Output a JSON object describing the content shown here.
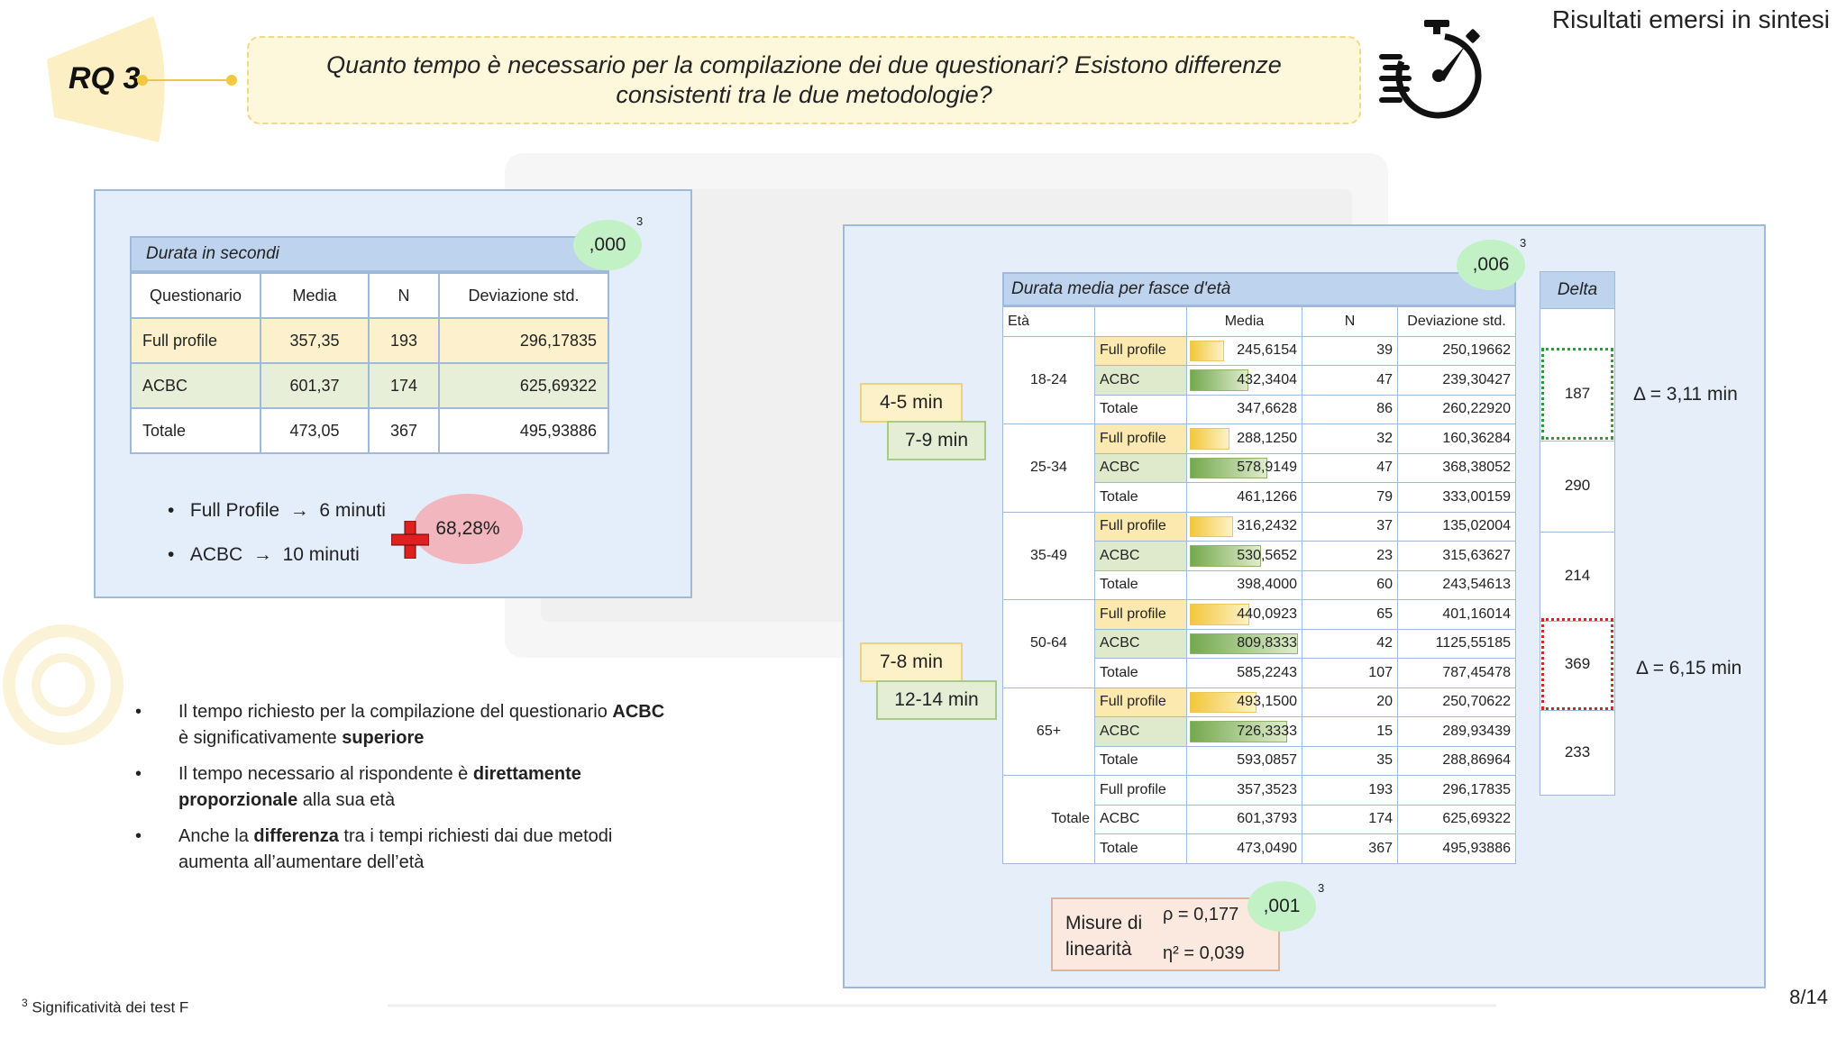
{
  "header": {
    "rq_label": "RQ 3",
    "question": "Quanto tempo è necessario per la compilazione dei due questionari? Esistono differenze consistenti tra le due metodologie?",
    "slide_title": "Risultati emersi in sintesi",
    "icon": "stopwatch-icon"
  },
  "table1": {
    "title": "Durata in secondi",
    "significance": ",000",
    "sup": "3",
    "columns": [
      "Questionario",
      "Media",
      "N",
      "Deviazione std."
    ],
    "rows": [
      [
        "Full profile",
        "357,35",
        "193",
        "296,17835"
      ],
      [
        "ACBC",
        "601,37",
        "174",
        "625,69322"
      ],
      [
        "Totale",
        "473,05",
        "367",
        "495,93886"
      ]
    ]
  },
  "summary": {
    "item1_label": "Full Profile",
    "item1_value": "6 minuti",
    "item2_label": "ACBC",
    "item2_value": "10 minuti",
    "increase": "68,28%"
  },
  "findings": [
    [
      "Il tempo richiesto per la compilazione del questionario ",
      "ACBC",
      " è significativamente ",
      "superiore",
      ""
    ],
    [
      "Il tempo necessario al rispondente è ",
      "direttamente proporzionale",
      " alla sua età",
      "",
      ""
    ],
    [
      "Anche la ",
      "differenza",
      " tra i tempi richiesti dai due metodi aumenta all’aumentare dell’età",
      "",
      ""
    ]
  ],
  "table2": {
    "title": "Durata media per fasce d'età",
    "significance": ",006",
    "sup": "3",
    "columns": [
      "Età",
      "",
      "Media",
      "N",
      "Deviazione std."
    ],
    "max_media": 809.8333,
    "groups": [
      {
        "age": "18-24",
        "rows": [
          [
            "Full profile",
            "245,6154",
            "39",
            "250,19662",
            245.6154
          ],
          [
            "ACBC",
            "432,3404",
            "47",
            "239,30427",
            432.3404
          ],
          [
            "Totale",
            "347,6628",
            "86",
            "260,22920",
            null
          ]
        ]
      },
      {
        "age": "25-34",
        "rows": [
          [
            "Full profile",
            "288,1250",
            "32",
            "160,36284",
            288.125
          ],
          [
            "ACBC",
            "578,9149",
            "47",
            "368,38052",
            578.9149
          ],
          [
            "Totale",
            "461,1266",
            "79",
            "333,00159",
            null
          ]
        ]
      },
      {
        "age": "35-49",
        "rows": [
          [
            "Full profile",
            "316,2432",
            "37",
            "135,02004",
            316.2432
          ],
          [
            "ACBC",
            "530,5652",
            "23",
            "315,63627",
            530.5652
          ],
          [
            "Totale",
            "398,4000",
            "60",
            "243,54613",
            null
          ]
        ]
      },
      {
        "age": "50-64",
        "rows": [
          [
            "Full profile",
            "440,0923",
            "65",
            "401,16014",
            440.0923
          ],
          [
            "ACBC",
            "809,8333",
            "42",
            "1125,55185",
            809.8333
          ],
          [
            "Totale",
            "585,2243",
            "107",
            "787,45478",
            null
          ]
        ]
      },
      {
        "age": "65+",
        "rows": [
          [
            "Full profile",
            "493,1500",
            "20",
            "250,70622",
            493.15
          ],
          [
            "ACBC",
            "726,3333",
            "15",
            "289,93439",
            726.3333
          ],
          [
            "Totale",
            "593,0857",
            "35",
            "288,86964",
            null
          ]
        ]
      },
      {
        "age": "Totale",
        "rows": [
          [
            "Full profile",
            "357,3523",
            "193",
            "296,17835",
            null
          ],
          [
            "ACBC",
            "601,3793",
            "174",
            "625,69322",
            null
          ],
          [
            "Totale",
            "473,0490",
            "367",
            "495,93886",
            null
          ]
        ]
      }
    ]
  },
  "delta": {
    "title": "Delta",
    "values": [
      "187",
      "290",
      "214",
      "369",
      "233"
    ],
    "note_green": "Δ = 3,11 min",
    "note_red": "Δ = 6,15 min"
  },
  "minute_notes": {
    "a": "4-5 min",
    "b": "7-9 min",
    "c": "7-8 min",
    "d": "12-14 min"
  },
  "linearity": {
    "label": "Misure di linearità",
    "rho": "ρ = 0,177",
    "eta": "η² = 0,039",
    "significance": ",001",
    "sup": "3"
  },
  "footer": {
    "footnote_sup": "3",
    "footnote": "Significatività dei test F",
    "page": "8/14"
  }
}
